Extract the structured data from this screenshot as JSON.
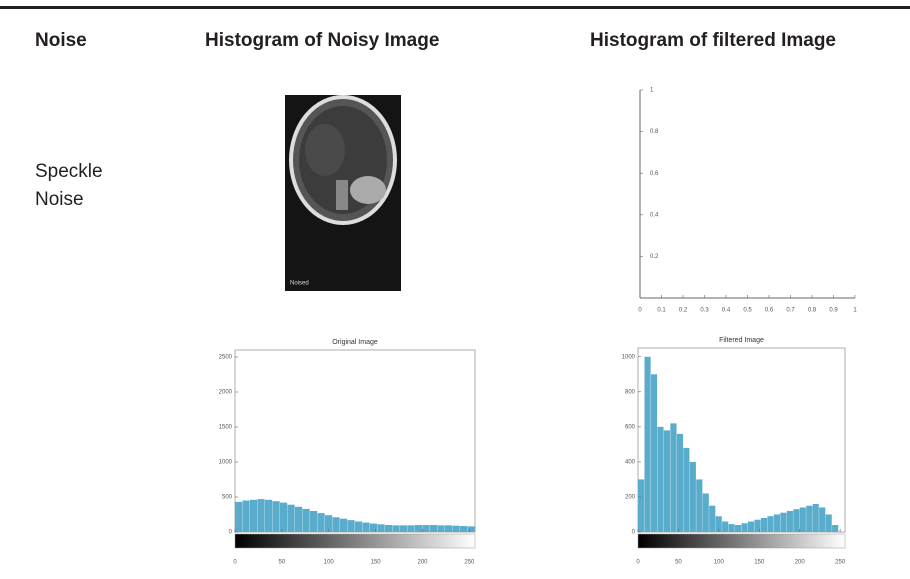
{
  "header": {
    "columns": [
      "Noise",
      "Histogram of Noisy Image",
      "Histogram of filtered Image"
    ]
  },
  "row": {
    "label": "Speckle Noise"
  },
  "noisy_image": {
    "caption": "Noised"
  },
  "filtered_plot": {
    "type": "line",
    "xlim": [
      0,
      1
    ],
    "ylim": [
      0,
      1
    ],
    "xticks": [
      0,
      0.1,
      0.2,
      0.3,
      0.4,
      0.5,
      0.6,
      0.7,
      0.8,
      0.9,
      1
    ],
    "yticks": [
      0.2,
      0.4,
      0.6,
      0.8,
      1
    ]
  },
  "original_histogram": {
    "type": "histogram",
    "title": "Original Image",
    "color": "#5aaccc",
    "bins": [
      0,
      8,
      16,
      24,
      32,
      40,
      48,
      56,
      64,
      72,
      80,
      88,
      96,
      104,
      112,
      120,
      128,
      136,
      144,
      152,
      160,
      168,
      176,
      184,
      192,
      200,
      208,
      216,
      224,
      232,
      240,
      248,
      256
    ],
    "values": [
      430,
      450,
      460,
      470,
      460,
      440,
      420,
      390,
      360,
      330,
      300,
      270,
      240,
      210,
      190,
      170,
      150,
      135,
      120,
      110,
      100,
      95,
      95,
      95,
      100,
      100,
      100,
      95,
      95,
      90,
      85,
      80
    ],
    "xlim": [
      0,
      256
    ],
    "ylim": [
      0,
      2600
    ],
    "xticks": [
      0,
      50,
      100,
      150,
      200,
      250
    ],
    "yticks": [
      0,
      500,
      1000,
      1500,
      2000,
      2500
    ]
  },
  "filtered_histogram": {
    "type": "histogram",
    "title": "Filtered Image",
    "color": "#5aaccc",
    "bins": [
      0,
      8,
      16,
      24,
      32,
      40,
      48,
      56,
      64,
      72,
      80,
      88,
      96,
      104,
      112,
      120,
      128,
      136,
      144,
      152,
      160,
      168,
      176,
      184,
      192,
      200,
      208,
      216,
      224,
      232,
      240,
      248,
      256
    ],
    "values": [
      300,
      1000,
      900,
      600,
      580,
      620,
      560,
      480,
      400,
      300,
      220,
      150,
      90,
      60,
      45,
      40,
      50,
      60,
      70,
      80,
      90,
      100,
      110,
      120,
      130,
      140,
      150,
      160,
      140,
      100,
      40,
      0
    ],
    "xlim": [
      0,
      256
    ],
    "ylim": [
      0,
      1050
    ],
    "xticks": [
      0,
      50,
      100,
      150,
      200,
      250
    ],
    "yticks": [
      0,
      200,
      400,
      600,
      800,
      1000
    ]
  }
}
